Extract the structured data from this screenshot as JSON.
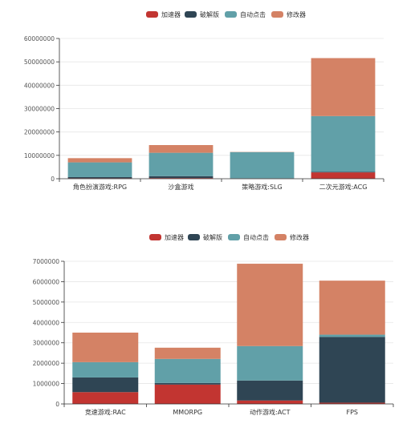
{
  "legend": {
    "colors": [
      "#c23531",
      "#2f4554",
      "#61a0a8",
      "#d48265"
    ]
  },
  "chart_data": [
    {
      "type": "bar",
      "stacked": true,
      "categories": [
        "角色扮演游戏:RPG",
        "沙盒游戏",
        "策略游戏:SLG",
        "二次元游戏:ACG"
      ],
      "series": [
        {
          "name": "加速器",
          "values": [
            200000,
            300000,
            100000,
            2700000
          ]
        },
        {
          "name": "破解版",
          "values": [
            500000,
            800000,
            100000,
            300000
          ]
        },
        {
          "name": "自动点击",
          "values": [
            6300000,
            10000000,
            11200000,
            23800000
          ]
        },
        {
          "name": "修改器",
          "values": [
            1800000,
            3300000,
            100000,
            24800000
          ]
        }
      ],
      "y_ticks": [
        "0",
        "10000000",
        "20000000",
        "30000000",
        "40000000",
        "50000000",
        "60000000"
      ],
      "ylim": [
        0,
        60000000
      ],
      "grid": true,
      "legend_position": "top-center"
    },
    {
      "type": "bar",
      "stacked": true,
      "categories": [
        "竞速游戏:RAC",
        "MMORPG",
        "动作游戏:ACT",
        "FPS"
      ],
      "series": [
        {
          "name": "加速器",
          "values": [
            580000,
            950000,
            170000,
            60000
          ]
        },
        {
          "name": "破解版",
          "values": [
            720000,
            80000,
            980000,
            3230000
          ]
        },
        {
          "name": "自动点击",
          "values": [
            750000,
            1180000,
            1690000,
            110000
          ]
        },
        {
          "name": "修改器",
          "values": [
            1450000,
            550000,
            4040000,
            2650000
          ]
        }
      ],
      "y_ticks": [
        "0",
        "1000000",
        "2000000",
        "3000000",
        "4000000",
        "5000000",
        "6000000",
        "7000000"
      ],
      "ylim": [
        0,
        7000000
      ],
      "grid": true,
      "legend_position": "top-center"
    }
  ]
}
